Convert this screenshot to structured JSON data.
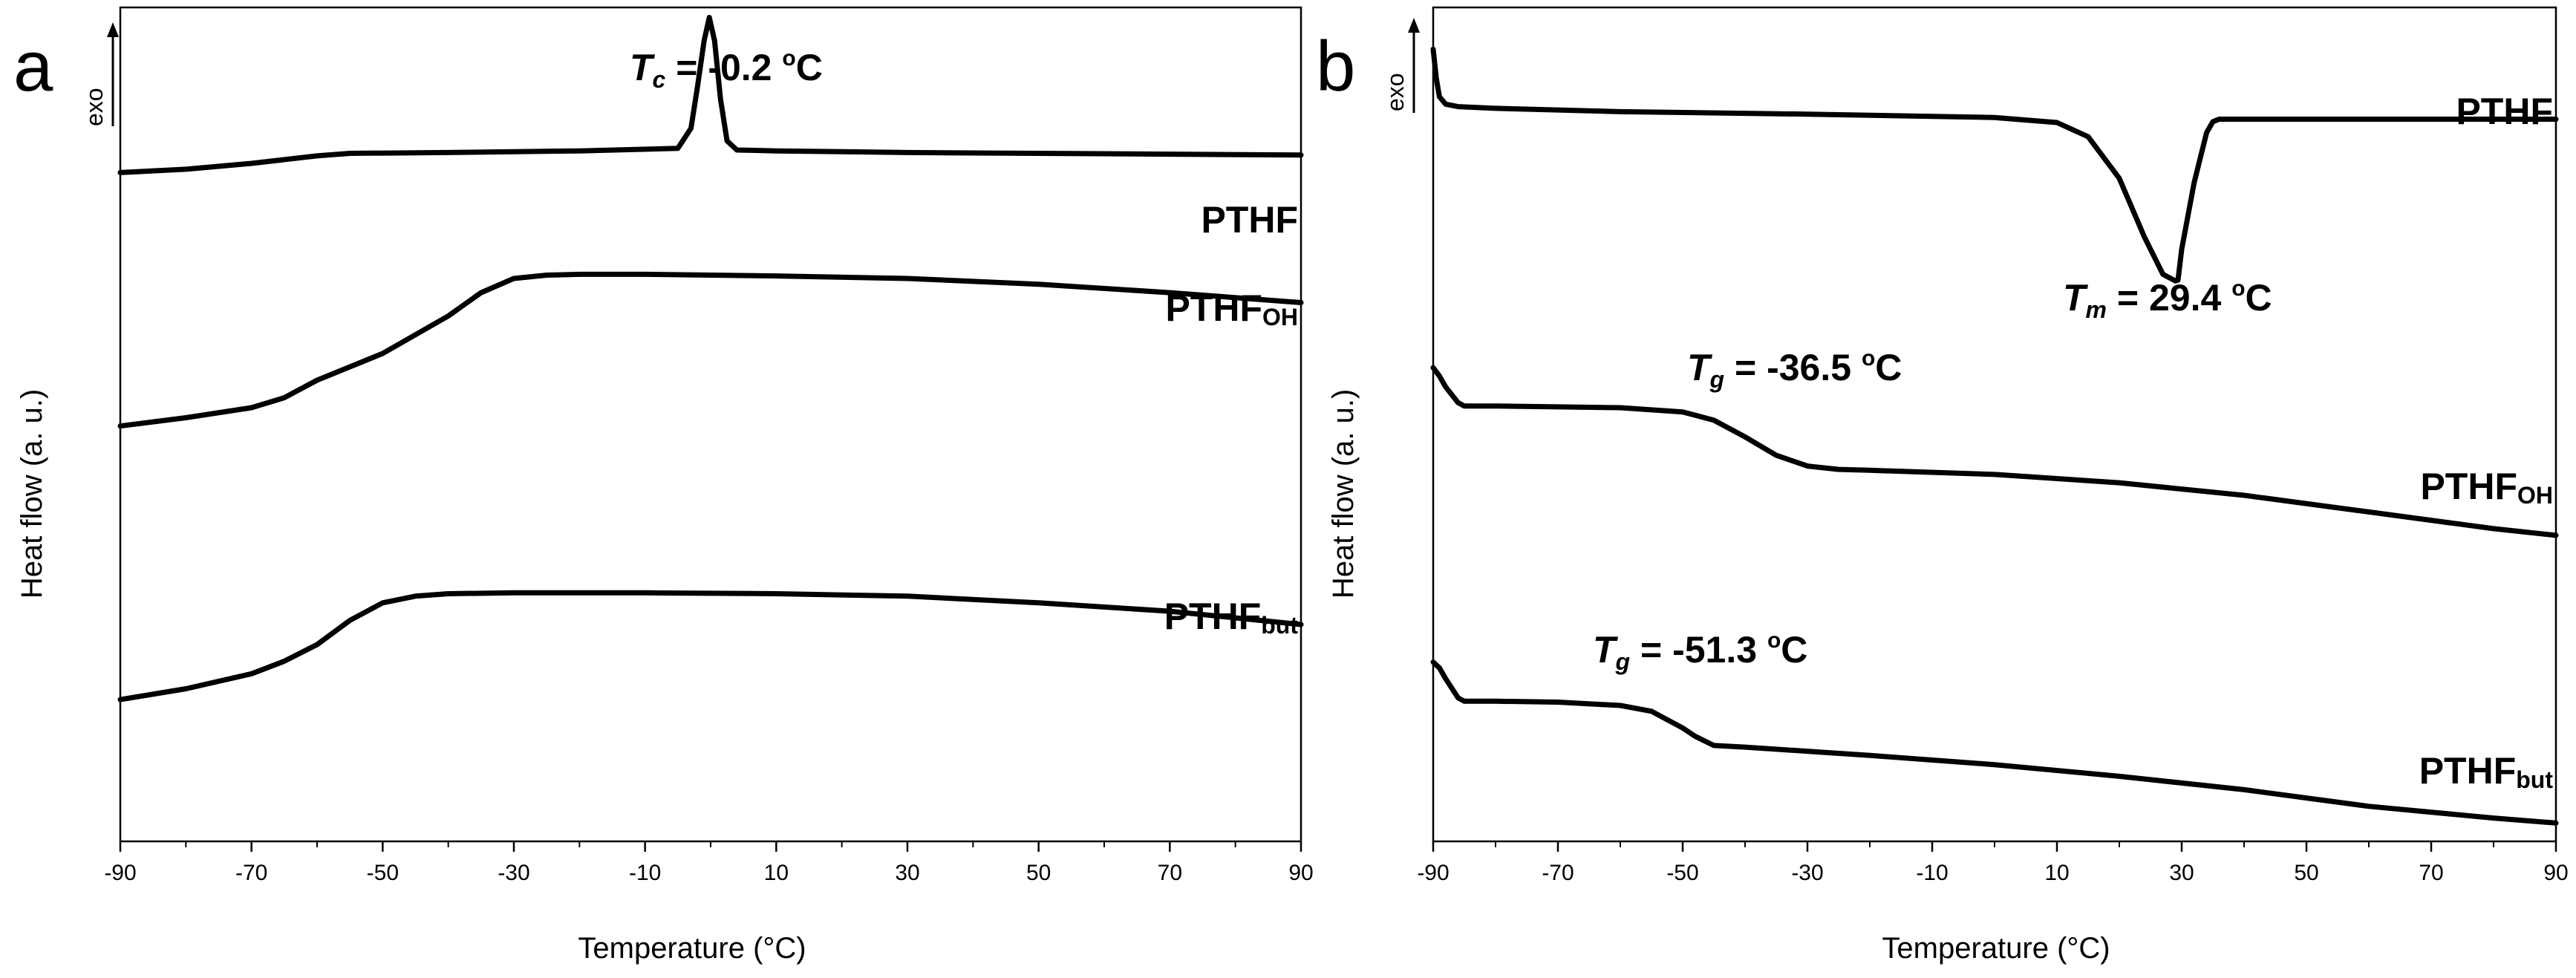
{
  "chart_data": [
    {
      "type": "line",
      "panel": "a",
      "xlabel": "Temperature (°C)",
      "ylabel": "Heat flow (a. u.)",
      "exo_label": "exo",
      "xlim": [
        -90,
        90
      ],
      "ylim": [
        0,
        100
      ],
      "xticks": [
        -90,
        -70,
        -50,
        -30,
        -10,
        10,
        30,
        50,
        70,
        90
      ],
      "tick_labels": [
        "-90",
        "-70",
        "-50",
        "-30",
        "-10",
        "10",
        "30",
        "50",
        "70",
        "90"
      ],
      "series": [
        {
          "name": "PTHF",
          "name_main": "PTHF",
          "name_sub": "",
          "x": [
            -90,
            -80,
            -70,
            -60,
            -55,
            -40,
            -20,
            -5,
            -3,
            -2,
            -1,
            -0.2,
            0.6,
            1.5,
            2.5,
            4,
            10,
            30,
            50,
            70,
            90
          ],
          "y": [
            80.2,
            80.6,
            81.3,
            82.2,
            82.5,
            82.6,
            82.8,
            83.1,
            85.5,
            90.5,
            96.0,
            98.8,
            96.0,
            89.0,
            84.0,
            82.9,
            82.8,
            82.6,
            82.5,
            82.4,
            82.3
          ]
        },
        {
          "name": "PTHFOH",
          "name_main": "PTHF",
          "name_sub": "OH",
          "x": [
            -90,
            -80,
            -70,
            -65,
            -60,
            -50,
            -40,
            -35,
            -30,
            -25,
            -20,
            -10,
            10,
            30,
            50,
            70,
            90
          ],
          "y": [
            49.8,
            50.8,
            52.0,
            53.2,
            55.3,
            58.5,
            63.0,
            65.8,
            67.5,
            67.9,
            68.0,
            68.0,
            67.8,
            67.5,
            66.8,
            65.8,
            64.6
          ]
        },
        {
          "name": "PTHFbut",
          "name_main": "PTHF",
          "name_sub": "but",
          "x": [
            -90,
            -80,
            -70,
            -65,
            -60,
            -55,
            -50,
            -45,
            -40,
            -30,
            -10,
            10,
            30,
            50,
            70,
            90
          ],
          "y": [
            17.0,
            18.3,
            20.1,
            21.6,
            23.6,
            26.5,
            28.6,
            29.4,
            29.7,
            29.8,
            29.8,
            29.7,
            29.4,
            28.6,
            27.6,
            26.0
          ]
        }
      ],
      "annotations": [
        {
          "symbol": "T",
          "subscript": "c",
          "text": " = -0.2 ",
          "degree": "o",
          "unit": "C"
        }
      ]
    },
    {
      "type": "line",
      "panel": "b",
      "xlabel": "Temperature (°C)",
      "ylabel": "Heat flow (a. u.)",
      "exo_label": "exo",
      "xlim": [
        -90,
        90
      ],
      "ylim": [
        0,
        100
      ],
      "xticks": [
        -90,
        -70,
        -50,
        -30,
        -10,
        10,
        30,
        50,
        70,
        90
      ],
      "tick_labels": [
        "-90",
        "-70",
        "-50",
        "-30",
        "-10",
        "10",
        "30",
        "50",
        "70",
        "90"
      ],
      "series": [
        {
          "name": "PTHF",
          "name_main": "PTHF",
          "name_sub": "",
          "x": [
            -90,
            -89.5,
            -89,
            -88,
            -86,
            -80,
            -60,
            -30,
            0,
            10,
            15,
            20,
            24,
            27,
            29,
            29.4,
            30,
            32,
            34,
            35,
            36,
            40,
            60,
            90
          ],
          "y": [
            95.0,
            91.5,
            89.3,
            88.4,
            88.1,
            87.9,
            87.5,
            87.2,
            86.8,
            86.2,
            84.5,
            79.5,
            72.5,
            68.0,
            67.2,
            67.3,
            71.0,
            79.0,
            85.0,
            86.3,
            86.6,
            86.6,
            86.6,
            86.6
          ]
        },
        {
          "name": "PTHFOH",
          "name_main": "PTHF",
          "name_sub": "OH",
          "x": [
            -90,
            -89,
            -88,
            -86,
            -85,
            -80,
            -70,
            -60,
            -50,
            -45,
            -40,
            -35,
            -30,
            -25,
            -20,
            0,
            20,
            40,
            60,
            80,
            90
          ],
          "y": [
            56.8,
            55.8,
            54.5,
            52.6,
            52.2,
            52.2,
            52.1,
            52.0,
            51.5,
            50.5,
            48.5,
            46.3,
            45.0,
            44.6,
            44.5,
            44.0,
            43.0,
            41.5,
            39.5,
            37.5,
            36.7
          ]
        },
        {
          "name": "PTHFbut",
          "name_main": "PTHF",
          "name_sub": "but",
          "x": [
            -90,
            -89,
            -88,
            -86,
            -85,
            -80,
            -70,
            -60,
            -55,
            -50,
            -48,
            -45,
            -40,
            -20,
            0,
            20,
            40,
            60,
            80,
            90
          ],
          "y": [
            21.5,
            20.8,
            19.5,
            17.2,
            16.8,
            16.8,
            16.7,
            16.3,
            15.6,
            13.6,
            12.6,
            11.5,
            11.3,
            10.3,
            9.2,
            7.8,
            6.2,
            4.2,
            2.8,
            2.2
          ]
        }
      ],
      "annotations": [
        {
          "symbol": "T",
          "subscript": "m",
          "text": " = 29.4 ",
          "degree": "o",
          "unit": "C"
        },
        {
          "symbol": "T",
          "subscript": "g",
          "text": " = -36.5 ",
          "degree": "o",
          "unit": "C"
        },
        {
          "symbol": "T",
          "subscript": "g",
          "text": " = -51.3 ",
          "degree": "o",
          "unit": "C"
        }
      ]
    }
  ]
}
